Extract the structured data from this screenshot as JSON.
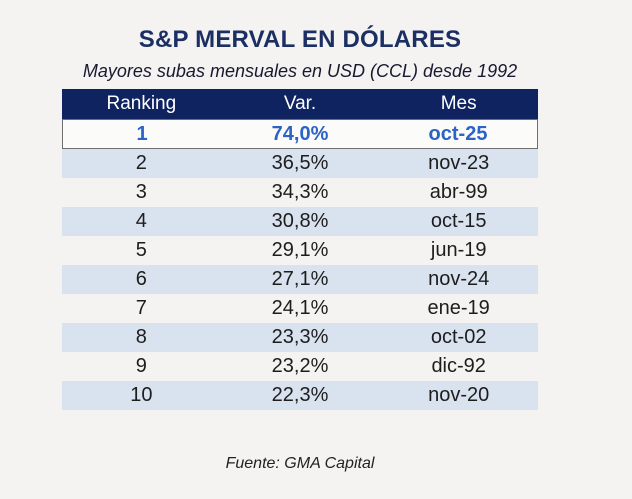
{
  "colors": {
    "page_background": "#F4F3F1",
    "title_navy": "#1B2F63",
    "header_background": "#0F2361",
    "header_text": "#FFFFFF",
    "band_blue": "#D9E2EF",
    "highlight_background": "#FBFBF9",
    "highlight_text_blue": "#2B63C6",
    "highlight_border": "#6E6E6E",
    "body_text": "#1D1D1D",
    "subtitle_text": "#181830"
  },
  "chart_data": {
    "type": "table",
    "title": "S&P MERVAL EN DÓLARES",
    "subtitle": "Mayores subas mensuales en USD (CCL) desde 1992",
    "source": "Fuente: GMA Capital",
    "columns": [
      "Ranking",
      "Var.",
      "Mes"
    ],
    "rows": [
      {
        "ranking": "1",
        "var": "74,0%",
        "mes": "oct-25",
        "highlight": true
      },
      {
        "ranking": "2",
        "var": "36,5%",
        "mes": "nov-23",
        "highlight": false
      },
      {
        "ranking": "3",
        "var": "34,3%",
        "mes": "abr-99",
        "highlight": false
      },
      {
        "ranking": "4",
        "var": "30,8%",
        "mes": "oct-15",
        "highlight": false
      },
      {
        "ranking": "5",
        "var": "29,1%",
        "mes": "jun-19",
        "highlight": false
      },
      {
        "ranking": "6",
        "var": "27,1%",
        "mes": "nov-24",
        "highlight": false
      },
      {
        "ranking": "7",
        "var": "24,1%",
        "mes": "ene-19",
        "highlight": false
      },
      {
        "ranking": "8",
        "var": "23,3%",
        "mes": "oct-02",
        "highlight": false
      },
      {
        "ranking": "9",
        "var": "23,2%",
        "mes": "dic-92",
        "highlight": false
      },
      {
        "ranking": "10",
        "var": "22,3%",
        "mes": "nov-20",
        "highlight": false
      }
    ]
  }
}
